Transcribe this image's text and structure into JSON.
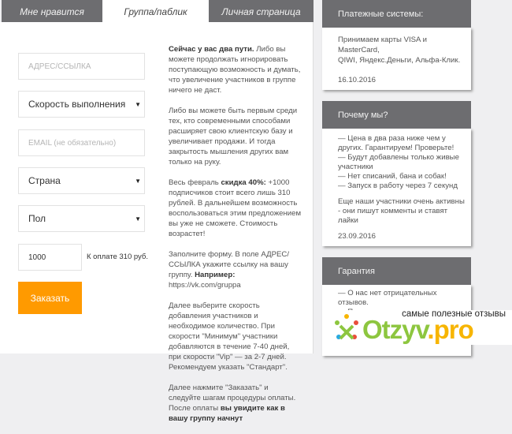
{
  "tabs": [
    {
      "label": "Мне нравится",
      "active": false
    },
    {
      "label": "Группа/паблик",
      "active": true
    },
    {
      "label": "Личная страница",
      "active": false
    }
  ],
  "form": {
    "address_placeholder": "АДРЕС/ССЫЛКА",
    "speed_select": "Скорость выполнения",
    "email_placeholder": "EMAIL (не обязательно)",
    "country_select": "Страна",
    "gender_select": "Пол",
    "quantity": "1000",
    "payment_text": "К оплате 310 руб.",
    "submit_label": "Заказать",
    "accent_color": "#ff9a00"
  },
  "description": {
    "p1_bold": "Сейчас у вас два пути.",
    "p1": " Либо вы можете продолжать игнорировать поступающую возможность и думать, что увеличение участников в группе ничего не даст.",
    "p2": "Либо вы можете быть первым среди тех, кто современными способами расширяет свою клиентскую базу и увеличивает продажи. И тогда закрытость мышления других вам только на руку.",
    "p3a": "Весь февраль ",
    "p3_bold": "скидка 40%:",
    "p3b": " +1000 подписчиков стоит всего лишь 310 рублей. В дальнейшем возможность воспользоваться этим предложением вы уже не сможете. Стоимость возрастет!",
    "p4a": "Заполните форму. В поле АДРЕС/ССЫЛКА укажите ссылку на вашу группу. ",
    "p4_bold": "Например:",
    "p4b": " https://vk.com/gruppa",
    "p5": "Далее выберите скорость добавления участников и необходимое количество. При скорости \"Минимум\" участники добавляются в течение 7-40 дней, при скорости \"Vip\" — за 2-7 дней. Рекомендуем указать \"Стандарт\".",
    "p6a": "Далее нажмите \"Заказать\" и следуйте шагам процедуры оплаты. После оплаты ",
    "p6_bold": "вы увидите как в вашу группу начнут"
  },
  "sidebar": [
    {
      "title": "Платежные системы:",
      "lines": [
        "Принимаем карты VISA и MasterCard,",
        "QIWI, Яндекс.Деньги, Альфа-Клик."
      ],
      "date": "16.10.2016"
    },
    {
      "title": "Почему мы?",
      "lines": [
        "— Цена в два раза ниже чем у других. Гарантируем! Проверьте!",
        "— Будут добавлены только живые участники",
        "— Нет списаний, бана и собак!",
        "— Запуск в работу через 7 секунд"
      ],
      "extra": "Еще наши участники очень активны - они пишут комменты и ставят лайки",
      "date": "23.09.2016"
    },
    {
      "title": "Гарантия",
      "lines": [
        "— О нас нет отрицательных отзывов.",
        "— Полностью ручное выполнение"
      ]
    }
  ],
  "watermark": {
    "slogan": "самые полезные отзывы",
    "brand_main": "Otzyv",
    "brand_suffix": ".pro"
  }
}
